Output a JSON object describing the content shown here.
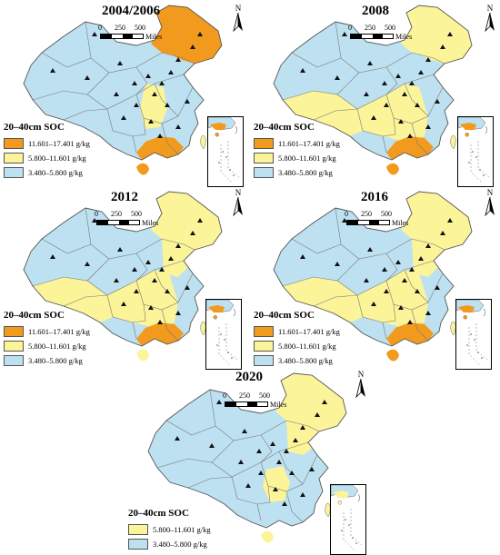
{
  "legend_title": "20–40cm SOC",
  "scale": {
    "ticks": [
      "0",
      "250",
      "500"
    ],
    "unit": "Miles"
  },
  "north_label": "N",
  "classes": {
    "high": {
      "label": "11.601–17.401 g/kg",
      "color": "#f29a1e"
    },
    "mid": {
      "label": "5.800–11.601 g/kg",
      "color": "#fbf498"
    },
    "low": {
      "label": "3.480–5.800 g/kg",
      "color": "#bde1f0"
    }
  },
  "maps": [
    {
      "year": "2004/2006",
      "legend_classes": [
        "high",
        "mid",
        "low"
      ]
    },
    {
      "year": "2008",
      "legend_classes": [
        "high",
        "mid",
        "low"
      ]
    },
    {
      "year": "2012",
      "legend_classes": [
        "high",
        "mid",
        "low"
      ]
    },
    {
      "year": "2016",
      "legend_classes": [
        "high",
        "mid",
        "low"
      ]
    },
    {
      "year": "2020",
      "legend_classes": [
        "mid",
        "low"
      ]
    }
  ]
}
